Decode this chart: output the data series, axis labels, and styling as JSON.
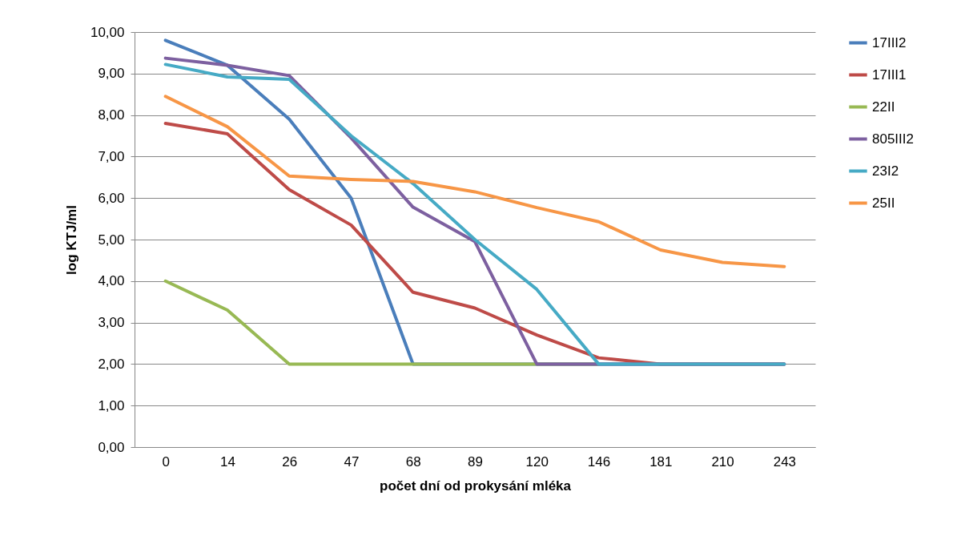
{
  "chart_data": {
    "type": "line",
    "xlabel": "počet dní od prokysání mléka",
    "ylabel": "log KTJ/ml",
    "categories": [
      "0",
      "14",
      "26",
      "47",
      "68",
      "89",
      "120",
      "146",
      "181",
      "210",
      "243"
    ],
    "series": [
      {
        "name": "17III2",
        "color": "#4a7ebb",
        "values": [
          9.8,
          9.2,
          7.9,
          6.0,
          2.0,
          2.0,
          2.0,
          2.0,
          2.0,
          2.0,
          2.0
        ]
      },
      {
        "name": "17III1",
        "color": "#be4b48",
        "values": [
          7.8,
          7.55,
          6.2,
          5.35,
          3.73,
          3.35,
          2.7,
          2.15,
          2.0,
          2.0,
          2.0
        ]
      },
      {
        "name": "22II",
        "color": "#98b954",
        "values": [
          4.0,
          3.3,
          2.0,
          2.0,
          2.0,
          2.0,
          2.0,
          2.0,
          null,
          null,
          null
        ]
      },
      {
        "name": "805III2",
        "color": "#7d60a0",
        "values": [
          9.37,
          9.2,
          8.95,
          7.45,
          5.78,
          4.95,
          2.0,
          2.0,
          2.0,
          2.0,
          2.0
        ]
      },
      {
        "name": "23I2",
        "color": "#46aac5",
        "values": [
          9.22,
          8.92,
          8.86,
          7.5,
          6.35,
          5.0,
          3.8,
          2.0,
          2.0,
          2.0,
          2.0
        ]
      },
      {
        "name": "25II",
        "color": "#f79646",
        "values": [
          8.45,
          7.72,
          6.53,
          6.45,
          6.4,
          6.15,
          5.77,
          5.43,
          4.75,
          4.45,
          4.35
        ]
      }
    ],
    "ylim": [
      0,
      10
    ],
    "yticks": [
      {
        "value": 0,
        "label": "0,00"
      },
      {
        "value": 1,
        "label": "1,00"
      },
      {
        "value": 2,
        "label": "2,00"
      },
      {
        "value": 3,
        "label": "3,00"
      },
      {
        "value": 4,
        "label": "4,00"
      },
      {
        "value": 5,
        "label": "5,00"
      },
      {
        "value": 6,
        "label": "6,00"
      },
      {
        "value": 7,
        "label": "7,00"
      },
      {
        "value": 8,
        "label": "8,00"
      },
      {
        "value": 9,
        "label": "9,00"
      },
      {
        "value": 10,
        "label": "10,00"
      }
    ],
    "grid": "y",
    "legend": "right",
    "line_style": "solid",
    "marker": "none"
  }
}
